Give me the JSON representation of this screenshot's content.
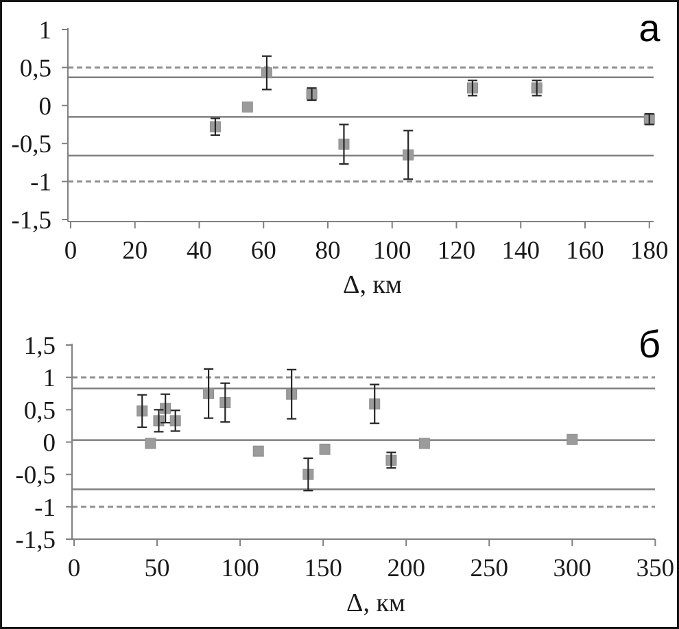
{
  "figure": {
    "description": "Two stacked scatter panels of residuals vs epicentral distance with mean and sigma reference lines",
    "x_axis_label": "Δ, км"
  },
  "style": {
    "background": "#ffffff",
    "frame": "#141414",
    "marker": "#9b9b9b",
    "solid_line": "#7f7f7f",
    "dashed_line": "#909090",
    "error_bar": "#262626",
    "axis": "#808080",
    "text": "#1a1a1a",
    "panel_label_color": "#000000"
  },
  "chart_data": [
    {
      "type": "scatter",
      "panel_label": "а",
      "title": "",
      "xlabel": "Δ, км",
      "ylabel": "",
      "xlim": [
        0,
        180
      ],
      "ylim": [
        -1.5,
        1
      ],
      "grid": false,
      "x_ticks": [
        0,
        20,
        40,
        60,
        80,
        100,
        120,
        140,
        160,
        180
      ],
      "x_tick_labels": [
        "0",
        "20",
        "40",
        "60",
        "80",
        "100",
        "120",
        "140",
        "160",
        "180"
      ],
      "y_ticks": [
        1,
        0.5,
        0,
        -0.5,
        -1,
        -1.5
      ],
      "y_tick_labels": [
        "1",
        "0,5",
        "0",
        "-0,5",
        "-1",
        "-1,5"
      ],
      "solid_lines": [
        0.37,
        -0.15,
        -0.66
      ],
      "dashed_lines": [
        0.5,
        -1.0
      ],
      "points": [
        {
          "x": 45,
          "y": -0.28,
          "err": 0.11
        },
        {
          "x": 55,
          "y": -0.02,
          "err": 0
        },
        {
          "x": 61,
          "y": 0.43,
          "err": 0.22
        },
        {
          "x": 75,
          "y": 0.15,
          "err": 0.08
        },
        {
          "x": 85,
          "y": -0.51,
          "err": 0.26
        },
        {
          "x": 105,
          "y": -0.65,
          "err": 0.32
        },
        {
          "x": 125,
          "y": 0.23,
          "err": 0.1
        },
        {
          "x": 145,
          "y": 0.23,
          "err": 0.1
        },
        {
          "x": 180,
          "y": -0.18,
          "err": 0.07
        }
      ]
    },
    {
      "type": "scatter",
      "panel_label": "б",
      "title": "",
      "xlabel": "Δ, км",
      "ylabel": "",
      "xlim": [
        0,
        350
      ],
      "ylim": [
        -1.5,
        1.5
      ],
      "grid": false,
      "x_ticks": [
        0,
        50,
        100,
        150,
        200,
        250,
        300,
        350
      ],
      "x_tick_labels": [
        "0",
        "50",
        "100",
        "150",
        "200",
        "250",
        "300",
        "350"
      ],
      "y_ticks": [
        1.5,
        1,
        0.5,
        0,
        -0.5,
        -1,
        -1.5
      ],
      "y_tick_labels": [
        "1,5",
        "1",
        "0,5",
        "0",
        "-0,5",
        "-1",
        "-1,5"
      ],
      "solid_lines": [
        0.83,
        0.03,
        -0.73
      ],
      "dashed_lines": [
        1.0,
        -1.0
      ],
      "points": [
        {
          "x": 41,
          "y": 0.48,
          "err": 0.25
        },
        {
          "x": 46,
          "y": -0.02,
          "err": 0
        },
        {
          "x": 51,
          "y": 0.33,
          "err": 0.17
        },
        {
          "x": 55,
          "y": 0.52,
          "err": 0.22
        },
        {
          "x": 61,
          "y": 0.33,
          "err": 0.16
        },
        {
          "x": 81,
          "y": 0.75,
          "err": 0.38
        },
        {
          "x": 91,
          "y": 0.61,
          "err": 0.3
        },
        {
          "x": 111,
          "y": -0.14,
          "err": 0
        },
        {
          "x": 131,
          "y": 0.74,
          "err": 0.38
        },
        {
          "x": 141,
          "y": -0.5,
          "err": 0.25
        },
        {
          "x": 151,
          "y": -0.11,
          "err": 0
        },
        {
          "x": 181,
          "y": 0.59,
          "err": 0.3
        },
        {
          "x": 191,
          "y": -0.28,
          "err": 0.12
        },
        {
          "x": 211,
          "y": -0.02,
          "err": 0
        },
        {
          "x": 300,
          "y": 0.04,
          "err": 0
        }
      ]
    }
  ]
}
